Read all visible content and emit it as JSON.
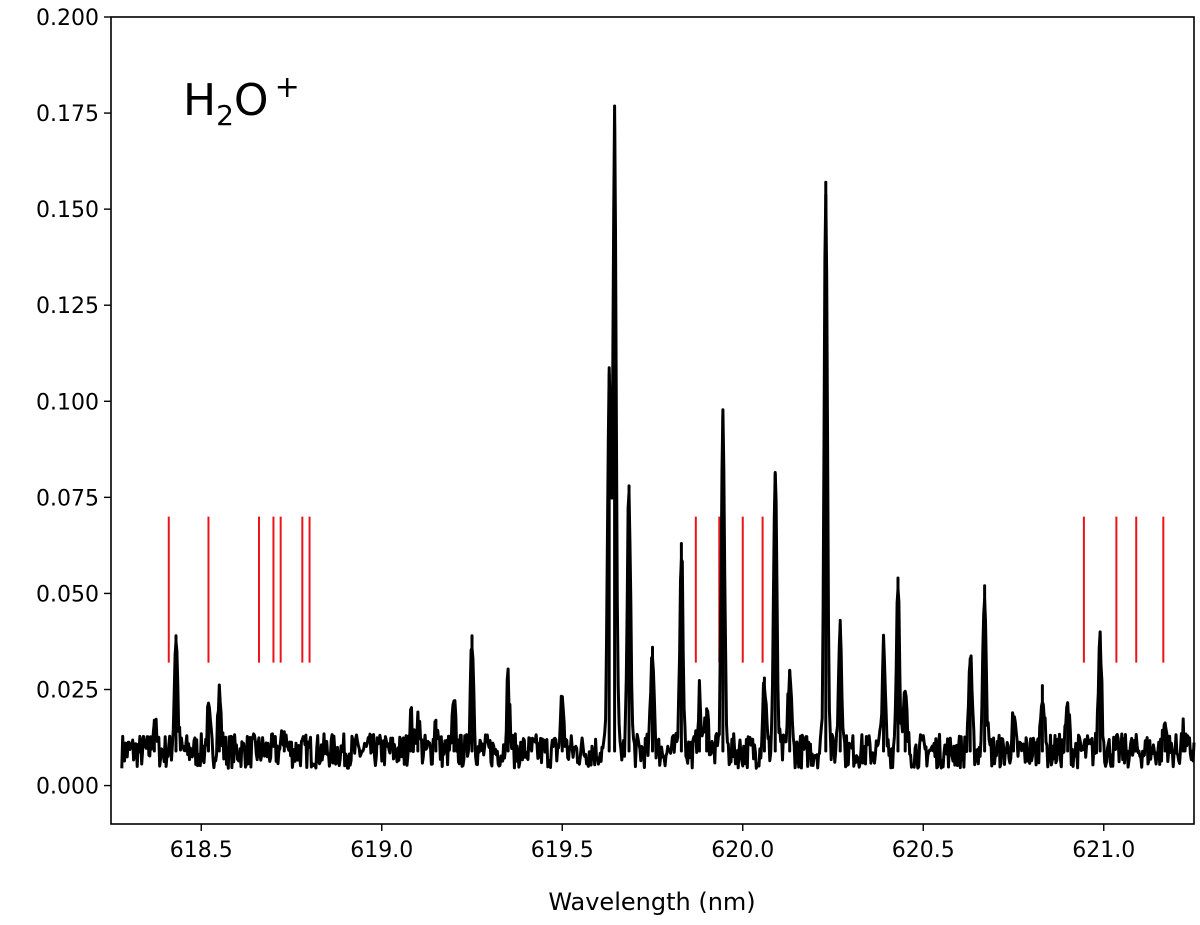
{
  "chart_data": {
    "type": "line",
    "title": "",
    "annotation": {
      "base": "H",
      "subscript": "2",
      "main": "O",
      "superscript": "+"
    },
    "xlabel": "Wavelength (nm)",
    "ylabel": "",
    "xlim": [
      618.25,
      621.25
    ],
    "ylim": [
      -0.01,
      0.2
    ],
    "xticks": [
      618.5,
      619.0,
      619.5,
      620.0,
      620.5,
      621.0
    ],
    "xtick_labels": [
      "618.5",
      "619.0",
      "619.5",
      "620.0",
      "620.5",
      "621.0"
    ],
    "yticks": [
      0.0,
      0.025,
      0.05,
      0.075,
      0.1,
      0.125,
      0.15,
      0.175,
      0.2
    ],
    "ytick_labels": [
      "0.000",
      "0.025",
      "0.050",
      "0.075",
      "0.100",
      "0.125",
      "0.150",
      "0.175",
      "0.200"
    ],
    "grid": false,
    "series": [
      {
        "color": "#000000",
        "baseline": 0.009,
        "peaks": [
          {
            "x": 618.37,
            "y": 0.017
          },
          {
            "x": 618.43,
            "y": 0.039
          },
          {
            "x": 618.52,
            "y": 0.018
          },
          {
            "x": 618.55,
            "y": 0.024
          },
          {
            "x": 618.73,
            "y": 0.014
          },
          {
            "x": 619.08,
            "y": 0.018
          },
          {
            "x": 619.1,
            "y": 0.018
          },
          {
            "x": 619.15,
            "y": 0.017
          },
          {
            "x": 619.2,
            "y": 0.02
          },
          {
            "x": 619.25,
            "y": 0.039
          },
          {
            "x": 619.35,
            "y": 0.027
          },
          {
            "x": 619.5,
            "y": 0.023
          },
          {
            "x": 619.63,
            "y": 0.107
          },
          {
            "x": 619.645,
            "y": 0.172
          },
          {
            "x": 619.685,
            "y": 0.078
          },
          {
            "x": 619.75,
            "y": 0.036
          },
          {
            "x": 619.83,
            "y": 0.063
          },
          {
            "x": 619.88,
            "y": 0.023
          },
          {
            "x": 619.9,
            "y": 0.02
          },
          {
            "x": 619.945,
            "y": 0.096
          },
          {
            "x": 620.06,
            "y": 0.028
          },
          {
            "x": 620.09,
            "y": 0.081
          },
          {
            "x": 620.13,
            "y": 0.03
          },
          {
            "x": 620.23,
            "y": 0.157
          },
          {
            "x": 620.27,
            "y": 0.043
          },
          {
            "x": 620.39,
            "y": 0.035
          },
          {
            "x": 620.43,
            "y": 0.054
          },
          {
            "x": 620.45,
            "y": 0.023
          },
          {
            "x": 620.63,
            "y": 0.033
          },
          {
            "x": 620.67,
            "y": 0.052
          },
          {
            "x": 620.75,
            "y": 0.016
          },
          {
            "x": 620.83,
            "y": 0.026
          },
          {
            "x": 620.9,
            "y": 0.02
          },
          {
            "x": 620.99,
            "y": 0.04
          },
          {
            "x": 621.17,
            "y": 0.016
          },
          {
            "x": 621.22,
            "y": 0.013
          }
        ]
      }
    ],
    "marker_lines": {
      "color": "#e8141a",
      "y_range": [
        0.032,
        0.07
      ],
      "x": [
        618.41,
        618.52,
        618.66,
        618.7,
        618.72,
        618.78,
        618.8,
        619.87,
        619.935,
        620.0,
        620.055,
        620.945,
        621.035,
        621.09,
        621.165
      ]
    }
  }
}
